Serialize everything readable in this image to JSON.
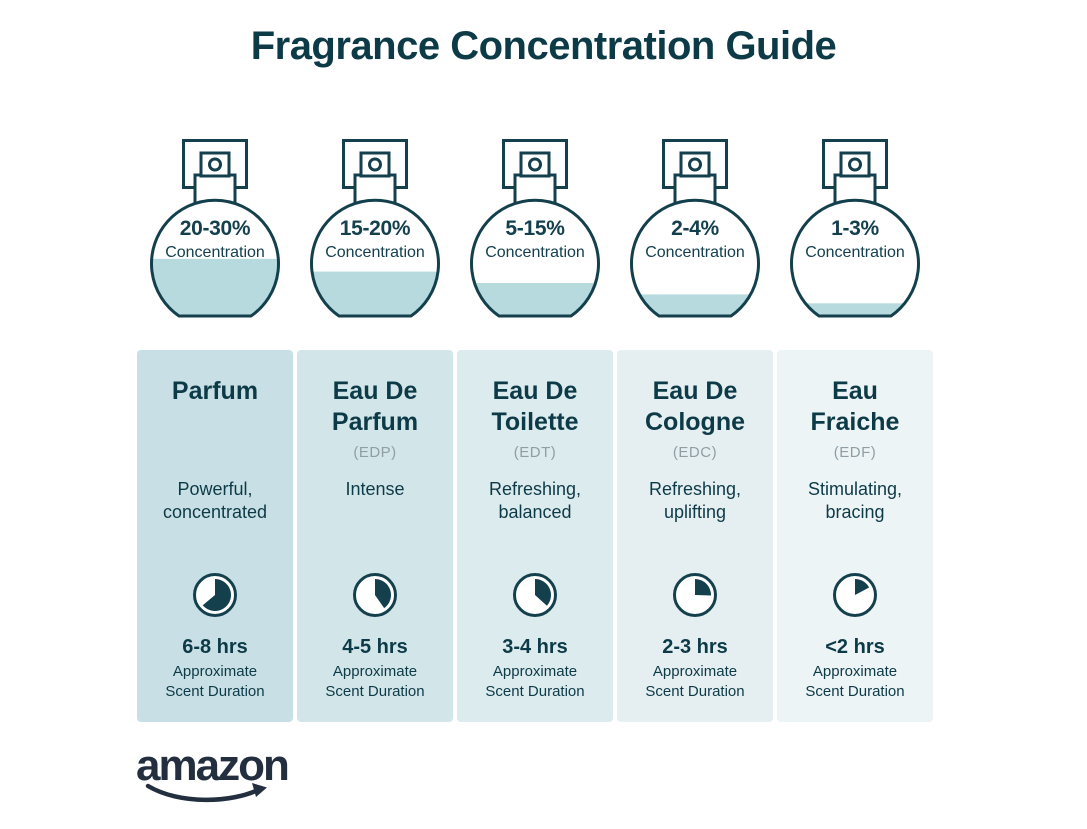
{
  "title": "Fragrance Concentration Guide",
  "brand": {
    "logo_text": "amazon"
  },
  "shared": {
    "concentration_label": "Concentration",
    "duration_caption": "Approximate Scent Duration"
  },
  "colors": {
    "ink": "#14404d",
    "title_ink": "#0d3a47",
    "liquid": "#b7dade",
    "abbr_gray": "#8f9ea4",
    "amazon_ink": "#232f3e",
    "card_colors": [
      "#c8e0e5",
      "#d2e6e9",
      "#dcebee",
      "#e5eff1",
      "#edf4f5"
    ]
  },
  "items": [
    {
      "concentration": "20-30%",
      "name": "Parfum",
      "abbr": "",
      "description": "Powerful, concentrated",
      "duration": "6-8 hrs",
      "fill_percent": 45,
      "clock_degrees": 230,
      "card_color": "#c8e0e5"
    },
    {
      "concentration": "15-20%",
      "name": "Eau De Parfum",
      "abbr": "(EDP)",
      "description": "Intense",
      "duration": "4-5 hrs",
      "fill_percent": 35,
      "clock_degrees": 145,
      "card_color": "#d2e6e9"
    },
    {
      "concentration": "5-15%",
      "name": "Eau De Toilette",
      "abbr": "(EDT)",
      "description": "Refreshing, balanced",
      "duration": "3-4 hrs",
      "fill_percent": 26,
      "clock_degrees": 132,
      "card_color": "#dcebee"
    },
    {
      "concentration": "2-4%",
      "name": "Eau De Cologne",
      "abbr": "(EDC)",
      "description": "Refreshing, uplifting",
      "duration": "2-3 hrs",
      "fill_percent": 17,
      "clock_degrees": 92,
      "card_color": "#e5eff1"
    },
    {
      "concentration": "1-3%",
      "name": "Eau Fraiche",
      "abbr": "(EDF)",
      "description": "Stimulating, bracing",
      "duration": "<2 hrs",
      "fill_percent": 10,
      "clock_degrees": 62,
      "card_color": "#edf4f5"
    }
  ]
}
